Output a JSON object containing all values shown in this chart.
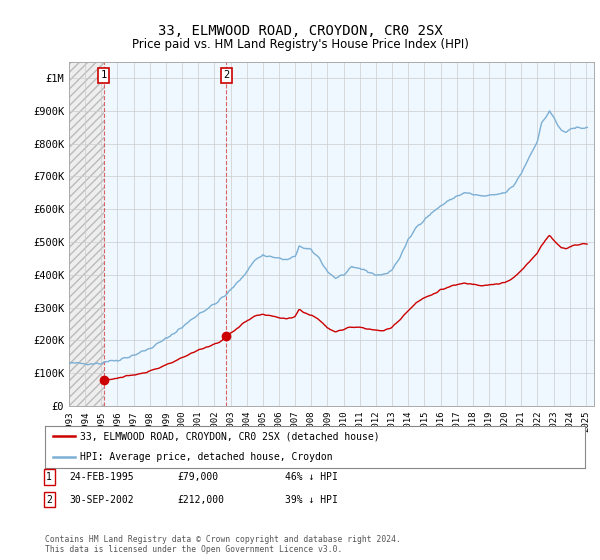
{
  "title": "33, ELMWOOD ROAD, CROYDON, CR0 2SX",
  "subtitle": "Price paid vs. HM Land Registry's House Price Index (HPI)",
  "title_fontsize": 10,
  "subtitle_fontsize": 8.5,
  "legend_label_red": "33, ELMWOOD ROAD, CROYDON, CR0 2SX (detached house)",
  "legend_label_blue": "HPI: Average price, detached house, Croydon",
  "footer": "Contains HM Land Registry data © Crown copyright and database right 2024.\nThis data is licensed under the Open Government Licence v3.0.",
  "transactions": [
    {
      "label": "1",
      "date": "24-FEB-1995",
      "price": "£79,000",
      "pct": "46% ↓ HPI",
      "year": 1995.15
    },
    {
      "label": "2",
      "date": "30-SEP-2002",
      "price": "£212,000",
      "pct": "39% ↓ HPI",
      "year": 2002.75
    }
  ],
  "transaction_prices": [
    79000,
    212000
  ],
  "transaction_years": [
    1995.15,
    2002.75
  ],
  "ylim": [
    0,
    1050000
  ],
  "xlim_start": 1993.0,
  "xlim_end": 2025.5,
  "red_color": "#cc0000",
  "blue_color": "#7bafd4",
  "hatch_color": "#cccccc",
  "shade_color": "#ddeeff",
  "grid_color": "#cccccc",
  "xtick_years": [
    1993,
    1994,
    1995,
    1996,
    1997,
    1998,
    1999,
    2000,
    2001,
    2002,
    2003,
    2004,
    2005,
    2006,
    2007,
    2008,
    2009,
    2010,
    2011,
    2012,
    2013,
    2014,
    2015,
    2016,
    2017,
    2018,
    2019,
    2020,
    2021,
    2022,
    2023,
    2024,
    2025
  ],
  "ytick_values": [
    0,
    100000,
    200000,
    300000,
    400000,
    500000,
    600000,
    700000,
    800000,
    900000,
    1000000
  ],
  "ytick_labels": [
    "£0",
    "£100K",
    "£200K",
    "£300K",
    "£400K",
    "£500K",
    "£600K",
    "£700K",
    "£800K",
    "£900K",
    "£1M"
  ]
}
